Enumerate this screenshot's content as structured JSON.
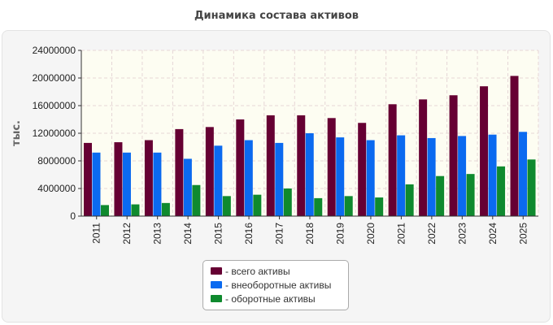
{
  "chart_data": {
    "type": "bar",
    "title": "Динамика состава активов",
    "ylabel": "тыс.",
    "xlabel": "",
    "ylim": [
      0,
      24000000
    ],
    "yticks": [
      "0",
      "4000000",
      "8000000",
      "12000000",
      "16000000",
      "20000000",
      "24000000"
    ],
    "grid": true,
    "legend_position": "bottom-center",
    "categories": [
      "2011",
      "2012",
      "2013",
      "2014",
      "2015",
      "2016",
      "2017",
      "2018",
      "2019",
      "2020",
      "2021",
      "2022",
      "2023",
      "2024",
      "2025"
    ],
    "series": [
      {
        "name": "- всего активы",
        "color": "#660033",
        "values": [
          10600000,
          10700000,
          11000000,
          12600000,
          12900000,
          14000000,
          14600000,
          14600000,
          14200000,
          13500000,
          16200000,
          16900000,
          17500000,
          18800000,
          20300000
        ]
      },
      {
        "name": "- внеоборотные активы",
        "color": "#0b6af0",
        "values": [
          9200000,
          9200000,
          9200000,
          8300000,
          10200000,
          11000000,
          10600000,
          12000000,
          11400000,
          11000000,
          11700000,
          11300000,
          11600000,
          11800000,
          12200000
        ]
      },
      {
        "name": "- оборотные активы",
        "color": "#0f8a2e",
        "values": [
          1600000,
          1700000,
          1900000,
          4500000,
          2900000,
          3100000,
          4000000,
          2600000,
          2900000,
          2700000,
          4600000,
          5800000,
          6100000,
          7200000,
          8200000
        ]
      }
    ]
  }
}
